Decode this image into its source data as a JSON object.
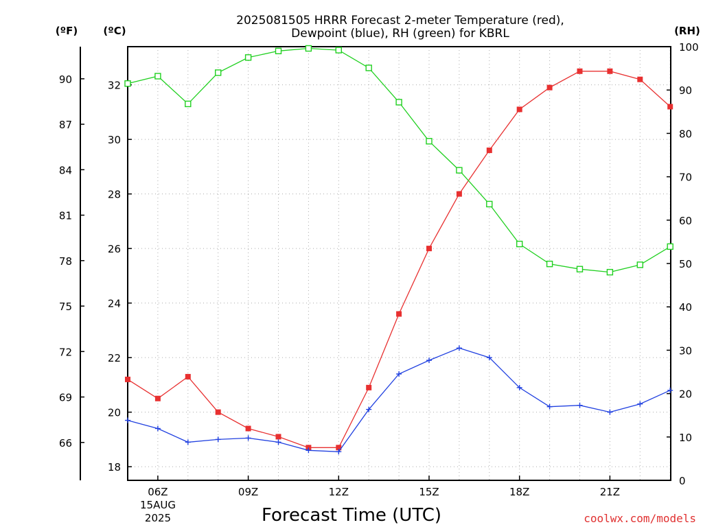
{
  "chart_data": {
    "type": "line",
    "title_line1": "2025081505 HRRR Forecast 2-meter Temperature (red),",
    "title_line2": "Dewpoint (blue), RH (green) for KBRL",
    "xlabel": "Forecast Time (UTC)",
    "date_label_line1": "15AUG",
    "date_label_line2": "2025",
    "credit": "coolwx.com/models",
    "unit_labels": {
      "fahrenheit": "(ºF)",
      "celsius": "(ºC)",
      "rh": "(RH)"
    },
    "x_hours": [
      "05Z",
      "06Z",
      "07Z",
      "08Z",
      "09Z",
      "10Z",
      "11Z",
      "12Z",
      "13Z",
      "14Z",
      "15Z",
      "16Z",
      "17Z",
      "18Z",
      "19Z",
      "20Z",
      "21Z",
      "22Z",
      "23Z"
    ],
    "x_tick_labels": [
      {
        "hour": "06Z",
        "label": "06Z"
      },
      {
        "hour": "09Z",
        "label": "09Z"
      },
      {
        "hour": "12Z",
        "label": "12Z"
      },
      {
        "hour": "15Z",
        "label": "15Z"
      },
      {
        "hour": "18Z",
        "label": "18Z"
      },
      {
        "hour": "21Z",
        "label": "21Z"
      }
    ],
    "celsius_axis": {
      "min": 17.5,
      "max": 33.4,
      "ticks": [
        18,
        20,
        22,
        24,
        26,
        28,
        30,
        32
      ]
    },
    "fahrenheit_ticks": [
      66,
      69,
      72,
      75,
      78,
      81,
      84,
      87,
      90
    ],
    "rh_axis": {
      "min": 0,
      "max": 100,
      "ticks": [
        0,
        10,
        20,
        30,
        40,
        50,
        60,
        70,
        80,
        90,
        100
      ]
    },
    "grid": true,
    "colors": {
      "temperature": "#e83030",
      "dewpoint": "#2040e0",
      "rh": "#20d020",
      "grid": "#aaaaaa"
    },
    "series": [
      {
        "name": "Temperature (red)",
        "axis": "celsius",
        "marker": "filled-square",
        "values": [
          21.2,
          20.5,
          21.3,
          20.0,
          19.4,
          19.1,
          18.7,
          18.7,
          20.9,
          23.6,
          26.0,
          28.0,
          29.6,
          31.1,
          31.9,
          32.5,
          32.5,
          32.2,
          31.2
        ]
      },
      {
        "name": "Dewpoint (blue)",
        "axis": "celsius",
        "marker": "plus",
        "values": [
          19.7,
          19.4,
          18.9,
          19.0,
          19.05,
          18.9,
          18.6,
          18.55,
          20.1,
          21.4,
          21.9,
          22.35,
          22.0,
          20.9,
          20.2,
          20.25,
          20.0,
          20.3,
          20.8
        ]
      },
      {
        "name": "RH (green)",
        "axis": "rh",
        "marker": "open-square",
        "values": [
          91.5,
          93.2,
          86.8,
          94.0,
          97.5,
          99.0,
          99.6,
          99.2,
          95.1,
          87.2,
          78.2,
          71.5,
          63.7,
          54.5,
          49.9,
          48.7,
          48.0,
          49.7,
          53.9
        ]
      }
    ]
  }
}
